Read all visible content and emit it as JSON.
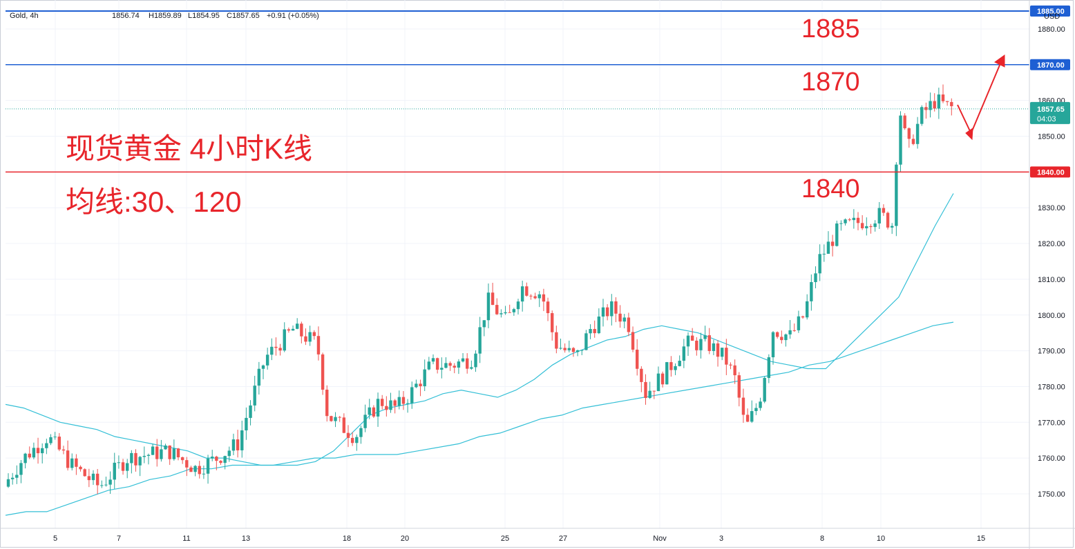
{
  "header": {
    "symbol": "Gold, 4h",
    "open": "1856.74",
    "high": "H1859.89",
    "low": "L1854.95",
    "close": "C1857.65",
    "change": "+0.91 (+0.05%)"
  },
  "currency": "USD",
  "price_tags": [
    {
      "label": "1885.00",
      "value": 1885.0,
      "color": "#1e5fd3"
    },
    {
      "label": "1870.00",
      "value": 1870.0,
      "color": "#1e5fd3"
    },
    {
      "label": "1840.00",
      "value": 1840.0,
      "color": "#e8252b"
    }
  ],
  "last_price": {
    "label": "1857.65",
    "value": 1857.65,
    "countdown": "04:03",
    "color": "#26a69a"
  },
  "annotations": {
    "level_1885": "1885",
    "level_1870": "1870",
    "level_1840": "1840",
    "title": "现货黄金 4小时K线",
    "subtitle": "均线:30、120"
  },
  "colors": {
    "up": "#26a69a",
    "down": "#ef5350",
    "ma": "#33bfd6",
    "blue_line": "#1e5fd3",
    "red_line": "#e8252b"
  },
  "chart_data": {
    "type": "candlestick",
    "symbol": "Gold",
    "timeframe": "4h",
    "ylim": [
      1742,
      1887
    ],
    "y_ticks": [
      1750,
      1760,
      1770,
      1780,
      1790,
      1800,
      1810,
      1820,
      1830,
      1840,
      1850,
      1860,
      1870,
      1880
    ],
    "x_ticks": [
      "5",
      "7",
      "11",
      "13",
      "18",
      "20",
      "25",
      "27",
      "Nov",
      "3",
      "8",
      "10",
      "15"
    ],
    "horizontal_lines": [
      1885,
      1870,
      1840
    ],
    "series": [
      {
        "name": "MA30",
        "type": "line",
        "values": [
          1775,
          1774,
          1772,
          1770,
          1769,
          1768,
          1766,
          1765,
          1764,
          1763,
          1762,
          1760,
          1760,
          1759,
          1758,
          1758,
          1758,
          1759,
          1762,
          1767,
          1772,
          1774,
          1775,
          1776,
          1778,
          1779,
          1778,
          1777,
          1779,
          1782,
          1786,
          1789,
          1791,
          1793,
          1794,
          1796,
          1797,
          1796,
          1795,
          1793,
          1791,
          1789,
          1787,
          1786,
          1785,
          1785,
          1790,
          1795,
          1800,
          1805,
          1815,
          1825,
          1834
        ]
      },
      {
        "name": "MA120",
        "type": "line",
        "values": [
          1744,
          1745,
          1745,
          1747,
          1749,
          1751,
          1752,
          1754,
          1755,
          1757,
          1757,
          1758,
          1758,
          1758,
          1759,
          1760,
          1760,
          1761,
          1761,
          1761,
          1762,
          1763,
          1764,
          1766,
          1767,
          1769,
          1771,
          1772,
          1774,
          1775,
          1776,
          1777,
          1778,
          1779,
          1780,
          1781,
          1782,
          1783,
          1784,
          1786,
          1787,
          1789,
          1791,
          1793,
          1795,
          1797,
          1798
        ]
      }
    ]
  }
}
